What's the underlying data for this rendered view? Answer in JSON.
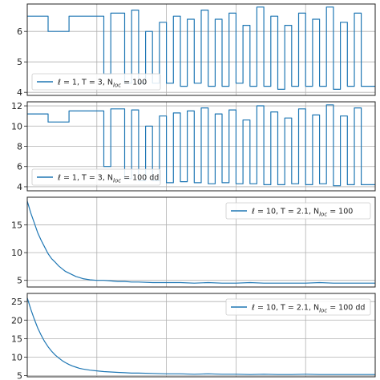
{
  "colors": {
    "series": "#1f77b4"
  },
  "chart_data": [
    {
      "type": "line",
      "panel": 1,
      "legend_placement": "lower-left",
      "grid": true,
      "ylim": [
        3.9,
        6.9
      ],
      "yticks": [
        4,
        5,
        6
      ],
      "legend_label": {
        "main": "ℓ = 1,  T = 3,  N",
        "sub": "loc",
        "tail": " = 100"
      },
      "series": [
        {
          "x": [
            0,
            3,
            3,
            6,
            6,
            11,
            11,
            12,
            12,
            14,
            14,
            15,
            15,
            16,
            16,
            17,
            17,
            18,
            18,
            19,
            19,
            20,
            20,
            21,
            21,
            22,
            22,
            23,
            23,
            24,
            24,
            25,
            25,
            26,
            26,
            27,
            27,
            28,
            28,
            29,
            29,
            30,
            30,
            31,
            31,
            32,
            32,
            33,
            33,
            34,
            34,
            35,
            35,
            36,
            36,
            37,
            37,
            38,
            38,
            39,
            39,
            40,
            40,
            41,
            41,
            42,
            42,
            43,
            43,
            44,
            44,
            45,
            45,
            46,
            46,
            47,
            47,
            48,
            48,
            50
          ],
          "y": [
            6.5,
            6.5,
            6.0,
            6.0,
            6.5,
            6.5,
            4.6,
            4.6,
            6.6,
            6.6,
            4.3,
            4.3,
            6.7,
            6.7,
            4.3,
            4.3,
            6.0,
            6.0,
            4.3,
            4.3,
            6.3,
            6.3,
            4.3,
            4.3,
            6.5,
            6.5,
            4.2,
            4.2,
            6.4,
            6.4,
            4.3,
            4.3,
            6.7,
            6.7,
            4.2,
            4.2,
            6.4,
            6.4,
            4.2,
            4.2,
            6.6,
            6.6,
            4.3,
            4.3,
            6.2,
            6.2,
            4.2,
            4.2,
            6.8,
            6.8,
            4.2,
            4.2,
            6.5,
            6.5,
            4.1,
            4.1,
            6.2,
            6.2,
            4.2,
            4.2,
            6.6,
            6.6,
            4.2,
            4.2,
            6.4,
            6.4,
            4.2,
            4.2,
            6.8,
            6.8,
            4.1,
            4.1,
            6.3,
            6.3,
            4.2,
            4.2,
            6.6,
            6.6,
            4.2,
            4.2
          ]
        }
      ]
    },
    {
      "type": "line",
      "panel": 2,
      "legend_placement": "lower-left",
      "grid": true,
      "ylim": [
        3.6,
        12.4
      ],
      "yticks": [
        4,
        6,
        8,
        10,
        12
      ],
      "legend_label": {
        "main": "ℓ = 1,  T = 3,  N",
        "sub": "loc",
        "tail": " = 100 dd"
      },
      "series": [
        {
          "x": [
            0,
            3,
            3,
            6,
            6,
            11,
            11,
            12,
            12,
            14,
            14,
            15,
            15,
            16,
            16,
            17,
            17,
            18,
            18,
            19,
            19,
            20,
            20,
            21,
            21,
            22,
            22,
            23,
            23,
            24,
            24,
            25,
            25,
            26,
            26,
            27,
            27,
            28,
            28,
            29,
            29,
            30,
            30,
            31,
            31,
            32,
            32,
            33,
            33,
            34,
            34,
            35,
            35,
            36,
            36,
            37,
            37,
            38,
            38,
            39,
            39,
            40,
            40,
            41,
            41,
            42,
            42,
            43,
            43,
            44,
            44,
            45,
            45,
            46,
            46,
            47,
            47,
            48,
            48,
            50
          ],
          "y": [
            11.2,
            11.2,
            10.4,
            10.4,
            11.5,
            11.5,
            6.0,
            6.0,
            11.7,
            11.7,
            4.8,
            4.8,
            11.6,
            11.6,
            4.6,
            4.6,
            10.0,
            10.0,
            4.6,
            4.6,
            11.0,
            11.0,
            4.4,
            4.4,
            11.3,
            11.3,
            4.5,
            4.5,
            11.5,
            11.5,
            4.4,
            4.4,
            11.8,
            11.8,
            4.3,
            4.3,
            11.2,
            11.2,
            4.4,
            4.4,
            11.6,
            11.6,
            4.3,
            4.3,
            10.6,
            10.6,
            4.3,
            4.3,
            12.0,
            12.0,
            4.2,
            4.2,
            11.4,
            11.4,
            4.2,
            4.2,
            10.8,
            10.8,
            4.3,
            4.3,
            11.7,
            11.7,
            4.2,
            4.2,
            11.1,
            11.1,
            4.3,
            4.3,
            12.1,
            12.1,
            4.1,
            4.1,
            11.0,
            11.0,
            4.2,
            4.2,
            11.8,
            11.8,
            4.2,
            4.2
          ]
        }
      ]
    },
    {
      "type": "line",
      "panel": 3,
      "legend_placement": "upper-right",
      "grid": true,
      "ylim": [
        3.8,
        20.0
      ],
      "yticks": [
        5,
        10,
        15
      ],
      "legend_label": {
        "main": "ℓ = 10,  T = 2.1,  N",
        "sub": "loc",
        "tail": " = 100"
      },
      "series": [
        {
          "x": [
            0,
            0.5,
            1,
            1.5,
            2,
            2.5,
            3,
            3.5,
            4,
            4.5,
            5,
            5.5,
            6,
            6.5,
            7,
            7.5,
            8,
            9,
            10,
            11,
            12,
            13,
            14,
            15,
            16,
            18,
            20,
            22,
            24,
            26,
            28,
            30,
            32,
            34,
            36,
            38,
            40,
            42,
            44,
            46,
            48,
            50
          ],
          "y": [
            19.3,
            17.2,
            15.4,
            13.6,
            12.2,
            11.0,
            9.8,
            8.9,
            8.3,
            7.6,
            7.1,
            6.6,
            6.3,
            6.0,
            5.7,
            5.5,
            5.3,
            5.1,
            5.0,
            5.0,
            4.9,
            4.8,
            4.8,
            4.7,
            4.7,
            4.6,
            4.6,
            4.6,
            4.5,
            4.6,
            4.5,
            4.5,
            4.6,
            4.5,
            4.5,
            4.5,
            4.5,
            4.6,
            4.5,
            4.5,
            4.5,
            4.5
          ]
        }
      ]
    },
    {
      "type": "line",
      "panel": 4,
      "legend_placement": "upper-right",
      "grid": true,
      "ylim": [
        4.7,
        27.2
      ],
      "yticks": [
        5,
        10,
        15,
        20,
        25
      ],
      "legend_label": {
        "main": "ℓ = 10,  T = 2.1,  N",
        "sub": "loc",
        "tail": " = 100 dd"
      },
      "series": [
        {
          "x": [
            0,
            0.5,
            1,
            1.5,
            2,
            2.5,
            3,
            3.5,
            4,
            4.5,
            5,
            5.5,
            6,
            6.5,
            7,
            7.5,
            8,
            9,
            10,
            11,
            12,
            13,
            14,
            15,
            16,
            18,
            20,
            22,
            24,
            26,
            28,
            30,
            32,
            34,
            36,
            38,
            40,
            42,
            44,
            46,
            48,
            50
          ],
          "y": [
            26.0,
            23.0,
            20.3,
            17.9,
            15.9,
            14.2,
            12.8,
            11.6,
            10.6,
            9.8,
            9.1,
            8.5,
            8.0,
            7.6,
            7.3,
            7.0,
            6.8,
            6.5,
            6.3,
            6.1,
            6.0,
            5.9,
            5.8,
            5.7,
            5.7,
            5.6,
            5.5,
            5.5,
            5.4,
            5.5,
            5.4,
            5.4,
            5.3,
            5.4,
            5.3,
            5.3,
            5.4,
            5.3,
            5.3,
            5.3,
            5.3,
            5.3
          ]
        }
      ]
    }
  ]
}
